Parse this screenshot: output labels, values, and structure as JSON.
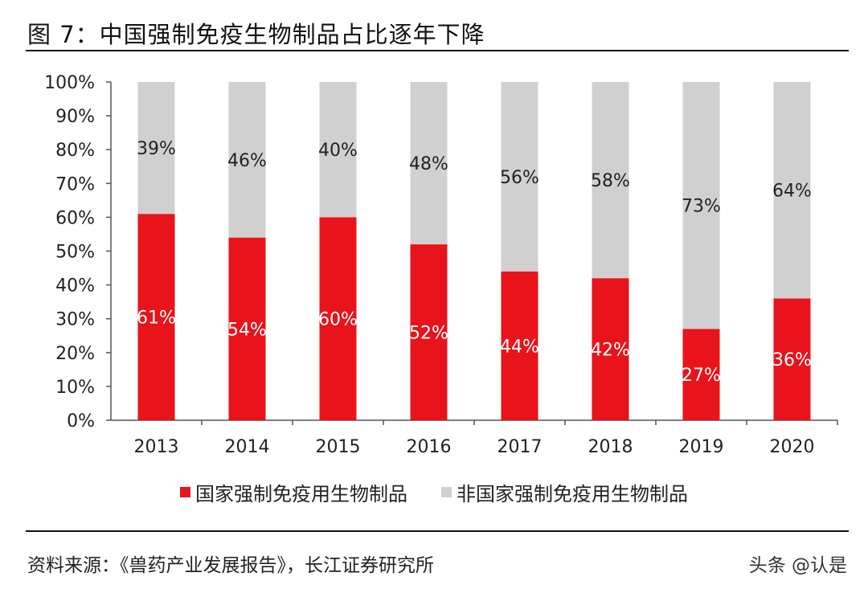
{
  "title": "图 7：中国强制免疫生物制品占比逐年下降",
  "source": "资料来源：《兽药产业发展报告》，长江证券研究所",
  "watermark": "头条 @认是",
  "colors": {
    "mandatory": "#e8131b",
    "non_mandatory": "#d0d0d0",
    "mandatory_label": "#ffffff",
    "non_mandatory_label": "#222222"
  },
  "chart_data": {
    "type": "bar",
    "stacked": true,
    "normalized": true,
    "categories": [
      "2013",
      "2014",
      "2015",
      "2016",
      "2017",
      "2018",
      "2019",
      "2020"
    ],
    "series": [
      {
        "name": "国家强制免疫用生物制品",
        "values": [
          61,
          54,
          60,
          52,
          44,
          42,
          27,
          36
        ],
        "labels": [
          "61%",
          "54%",
          "60%",
          "52%",
          "44%",
          "42%",
          "27%",
          "36%"
        ]
      },
      {
        "name": "非国家强制免疫用生物制品",
        "values": [
          39,
          46,
          40,
          48,
          56,
          58,
          73,
          64
        ],
        "labels": [
          "39%",
          "46%",
          "40%",
          "48%",
          "56%",
          "58%",
          "73%",
          "64%"
        ]
      }
    ],
    "yticks": [
      "0%",
      "10%",
      "20%",
      "30%",
      "40%",
      "50%",
      "60%",
      "70%",
      "80%",
      "90%",
      "100%"
    ],
    "ylim": [
      0,
      100
    ],
    "grid": false,
    "legend_position": "bottom"
  }
}
